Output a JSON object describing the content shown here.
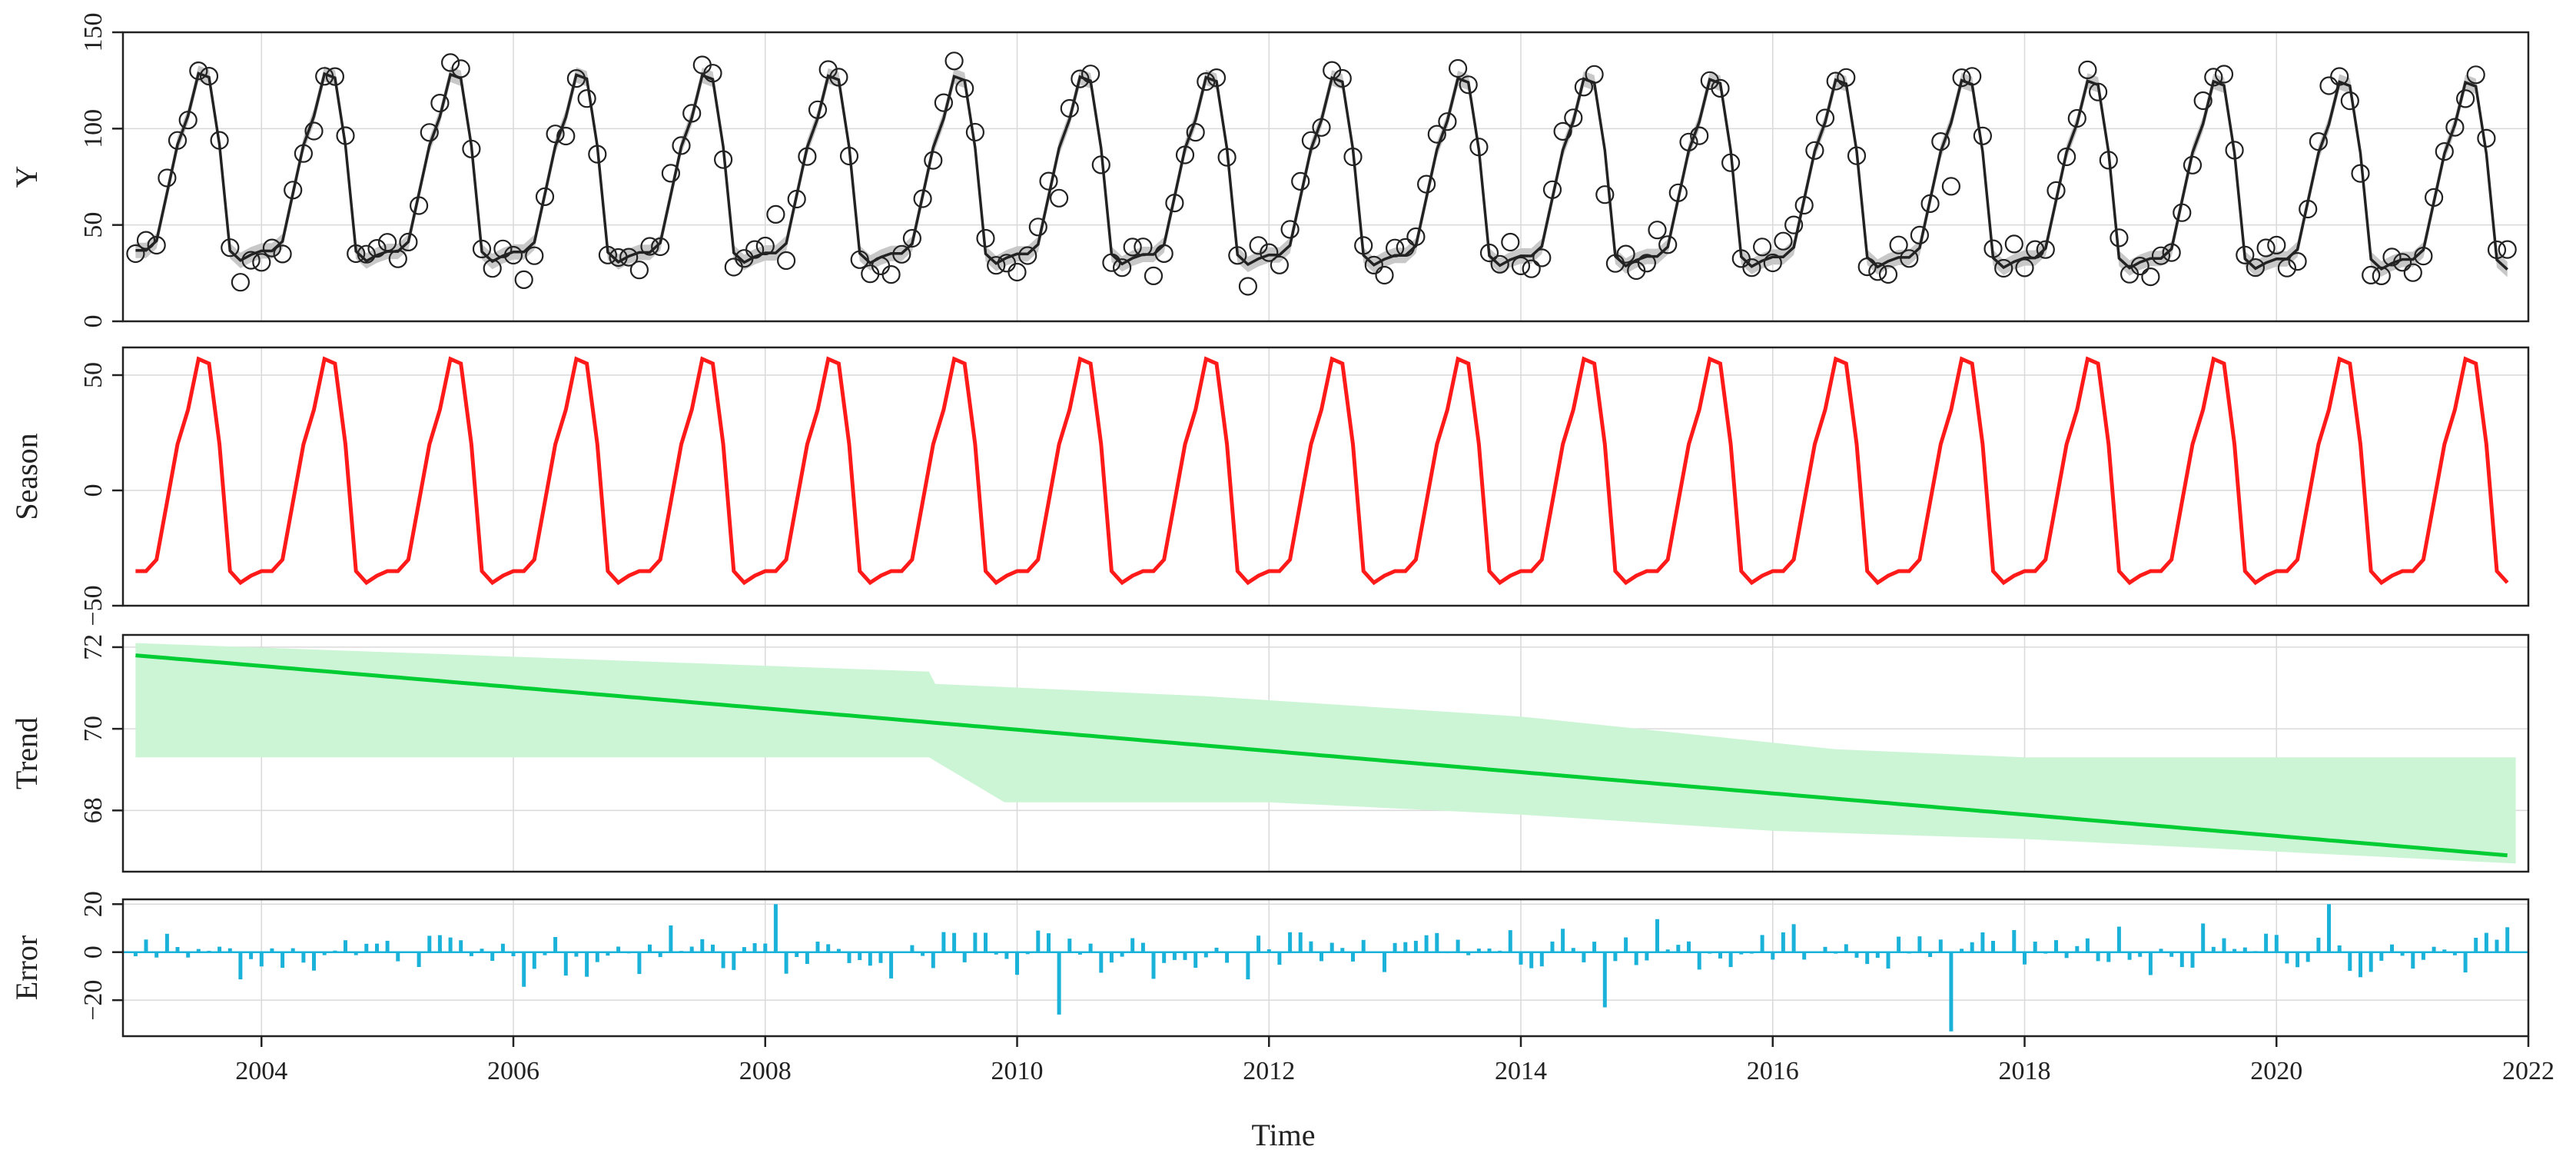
{
  "chart_data": {
    "type": "line",
    "title": "",
    "xlabel": "Time",
    "xlim": [
      2002.9,
      2022.0
    ],
    "xticks": [
      2004,
      2006,
      2008,
      2010,
      2012,
      2014,
      2016,
      2018,
      2020,
      2022
    ],
    "xtick_labels": [
      "2004",
      "2006",
      "2008",
      "2010",
      "2012",
      "2014",
      "2016",
      "2018",
      "2020",
      "2022"
    ],
    "start_year": 2003,
    "n_months": 227,
    "seasonal_profile": [
      -35,
      -35,
      -30,
      -5,
      20,
      35,
      57,
      55,
      20,
      -35,
      -40,
      -37
    ],
    "panels": [
      {
        "name": "Y",
        "ylabel": "Y",
        "ylim": [
          0,
          150
        ],
        "yticks": [
          0,
          50,
          100,
          150
        ],
        "ytick_labels": [
          "0",
          "50",
          "100",
          "150"
        ],
        "series": [
          {
            "name": "Fitted",
            "color": "#222222",
            "kind": "line"
          },
          {
            "name": "Observed",
            "color": "#222222",
            "kind": "circles"
          },
          {
            "name": "Uncertainty",
            "color": "#c8c8c8",
            "kind": "band"
          }
        ],
        "observations_note": "monthly observations 2003–2021, peaks ~125–143 mid-year, troughs ~20–35"
      },
      {
        "name": "Season",
        "ylabel": "Season",
        "ylim": [
          -50,
          62
        ],
        "yticks": [
          -50,
          0,
          50
        ],
        "ytick_labels": [
          "−50",
          "0",
          "50"
        ],
        "series": [
          {
            "name": "Seasonal component",
            "color": "#ff1a1a",
            "kind": "line"
          }
        ]
      },
      {
        "name": "Trend",
        "ylabel": "Trend",
        "ylim": [
          66.5,
          72.3
        ],
        "yticks": [
          68,
          70,
          72
        ],
        "ytick_labels": [
          "68",
          "70",
          "72"
        ],
        "series": [
          {
            "name": "Trend component",
            "color": "#00cc33",
            "kind": "line",
            "start": 71.8,
            "end": 66.9
          },
          {
            "name": "Confidence band",
            "color": "#ccf5d6",
            "kind": "band",
            "upper_knots": [
              [
                2003.0,
                72.1
              ],
              [
                2009.3,
                71.4
              ],
              [
                2009.35,
                71.1
              ],
              [
                2011.5,
                70.8
              ],
              [
                2014.0,
                70.3
              ],
              [
                2016.5,
                69.5
              ],
              [
                2018.0,
                69.3
              ],
              [
                2021.9,
                69.3
              ]
            ],
            "lower_knots": [
              [
                2003.0,
                69.3
              ],
              [
                2009.3,
                69.3
              ],
              [
                2009.9,
                68.2
              ],
              [
                2012.0,
                68.2
              ],
              [
                2014.0,
                67.9
              ],
              [
                2016.0,
                67.5
              ],
              [
                2018.0,
                67.3
              ],
              [
                2021.9,
                66.7
              ]
            ]
          }
        ]
      },
      {
        "name": "Error",
        "ylabel": "Error",
        "ylim": [
          -35,
          22
        ],
        "yticks": [
          -20,
          0,
          20
        ],
        "ytick_labels": [
          "−20",
          "0",
          "20"
        ],
        "series": [
          {
            "name": "Residuals",
            "color": "#1ab2d9",
            "kind": "bar"
          }
        ],
        "notable_values": [
          [
            2008.1,
            20
          ],
          [
            2010.3,
            -26
          ],
          [
            2014.65,
            -23
          ],
          [
            2017.4,
            -33
          ],
          [
            2020.4,
            20
          ]
        ]
      }
    ]
  }
}
